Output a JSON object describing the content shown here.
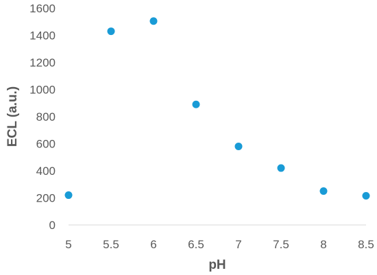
{
  "chart_data": {
    "type": "scatter",
    "title": "",
    "xlabel": "pH",
    "ylabel": "ECL (a.u.)",
    "xlim": [
      5,
      8.5
    ],
    "ylim": [
      0,
      1600
    ],
    "x_ticks": [
      "5",
      "5.5",
      "6",
      "6.5",
      "7",
      "7.5",
      "8",
      "8.5"
    ],
    "y_ticks": [
      "0",
      "200",
      "400",
      "600",
      "800",
      "1000",
      "1200",
      "1400",
      "1600"
    ],
    "grid": false,
    "legend": "none",
    "series": [
      {
        "color": "#199BD6",
        "points": [
          {
            "x": 5,
            "y": 220
          },
          {
            "x": 5.5,
            "y": 1430
          },
          {
            "x": 6,
            "y": 1505
          },
          {
            "x": 6.5,
            "y": 890
          },
          {
            "x": 7,
            "y": 580
          },
          {
            "x": 7.5,
            "y": 420
          },
          {
            "x": 8,
            "y": 250
          },
          {
            "x": 8.5,
            "y": 215
          }
        ]
      }
    ],
    "axis_color": "#D9D9D9"
  }
}
